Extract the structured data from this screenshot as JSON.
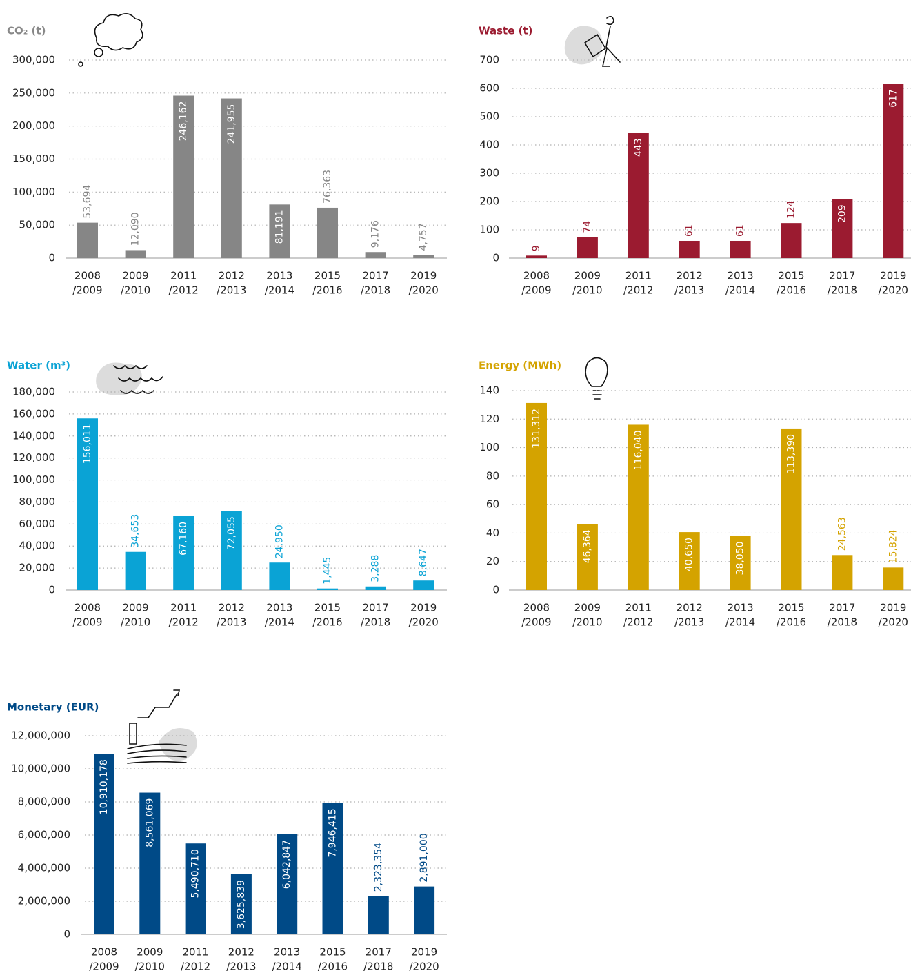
{
  "chart_data": [
    {
      "type": "bar",
      "title": "CO₂ (t)",
      "color": "#868686",
      "grid": true,
      "categories": [
        [
          "2008",
          "/2009"
        ],
        [
          "2009",
          "/2010"
        ],
        [
          "2011",
          "/2012"
        ],
        [
          "2012",
          "/2013"
        ],
        [
          "2013",
          "/2014"
        ],
        [
          "2015",
          "/2016"
        ],
        [
          "2017",
          "/2018"
        ],
        [
          "2019",
          "/2020"
        ]
      ],
      "values": [
        53694,
        12090,
        246162,
        241955,
        81191,
        76363,
        9176,
        4757
      ],
      "value_labels": [
        "53,694",
        "12,090",
        "246,162",
        "241,955",
        "81,191",
        "76,363",
        "9,176",
        "4,757"
      ],
      "ylim": [
        0,
        300000
      ],
      "yticks": [
        0,
        {
          "value": 50000,
          "label": "50,000"
        },
        {
          "value": 100000,
          "label": "100,000"
        },
        {
          "value": 150000,
          "label": "150,000"
        },
        {
          "value": 200000,
          "label": "200,000"
        },
        {
          "value": 250000,
          "label": "250,000"
        },
        {
          "value": 300000,
          "label": "300,000"
        }
      ]
    },
    {
      "type": "bar",
      "title": "Waste (t)",
      "color": "#9b1b30",
      "grid": true,
      "categories": [
        [
          "2008",
          "/2009"
        ],
        [
          "2009",
          "/2010"
        ],
        [
          "2011",
          "/2012"
        ],
        [
          "2012",
          "/2013"
        ],
        [
          "2013",
          "/2014"
        ],
        [
          "2015",
          "/2016"
        ],
        [
          "2017",
          "/2018"
        ],
        [
          "2019",
          "/2020"
        ]
      ],
      "values": [
        9,
        74,
        443,
        61,
        61,
        124,
        209,
        617
      ],
      "ylim": [
        0,
        700
      ],
      "yticks": [
        0,
        100,
        200,
        300,
        400,
        500,
        600,
        700
      ]
    },
    {
      "type": "bar",
      "title": "Water (m³)",
      "color": "#0aa3d5",
      "grid": true,
      "categories": [
        [
          "2008",
          "/2009"
        ],
        [
          "2009",
          "/2010"
        ],
        [
          "2011",
          "/2012"
        ],
        [
          "2012",
          "/2013"
        ],
        [
          "2013",
          "/2014"
        ],
        [
          "2015",
          "/2016"
        ],
        [
          "2017",
          "/2018"
        ],
        [
          "2019",
          "/2020"
        ]
      ],
      "values": [
        156011,
        34653,
        67160,
        72055,
        24950,
        1445,
        3288,
        8647
      ],
      "value_labels": [
        "156,011",
        "34,653",
        "67,160",
        "72,055",
        "24,950",
        "1,445",
        "3,288",
        "8,647"
      ],
      "ylim": [
        0,
        180000
      ],
      "yticks": [
        0,
        {
          "value": 20000,
          "label": "20,000"
        },
        {
          "value": 40000,
          "label": "40,000"
        },
        {
          "value": 60000,
          "label": "60,000"
        },
        {
          "value": 80000,
          "label": "80,000"
        },
        {
          "value": 100000,
          "label": "100,000"
        },
        {
          "value": 120000,
          "label": "120,000"
        },
        {
          "value": 140000,
          "label": "140,000"
        },
        {
          "value": 160000,
          "label": "160,000"
        },
        {
          "value": 180000,
          "label": "180,000"
        }
      ]
    },
    {
      "type": "bar",
      "title": "Energy (MWh)",
      "color": "#d4a300",
      "grid": true,
      "categories": [
        [
          "2008",
          "/2009"
        ],
        [
          "2009",
          "/2010"
        ],
        [
          "2011",
          "/2012"
        ],
        [
          "2012",
          "/2013"
        ],
        [
          "2013",
          "/2014"
        ],
        [
          "2015",
          "/2016"
        ],
        [
          "2017",
          "/2018"
        ],
        [
          "2019",
          "/2020"
        ]
      ],
      "values": [
        131.312,
        46.364,
        116.04,
        40.65,
        38.05,
        113.39,
        24.563,
        15.824
      ],
      "value_labels": [
        "131,312",
        "46,364",
        "116,040",
        "40,650",
        "38,050",
        "113,390",
        "24,563",
        "15,824"
      ],
      "ylim": [
        0,
        140
      ],
      "yticks": [
        0,
        20,
        40,
        60,
        80,
        100,
        120,
        140
      ]
    },
    {
      "type": "bar",
      "title": "Monetary (EUR)",
      "color": "#004a87",
      "grid": true,
      "categories": [
        [
          "2008",
          "/2009"
        ],
        [
          "2009",
          "/2010"
        ],
        [
          "2011",
          "/2012"
        ],
        [
          "2012",
          "/2013"
        ],
        [
          "2013",
          "/2014"
        ],
        [
          "2015",
          "/2016"
        ],
        [
          "2017",
          "/2018"
        ],
        [
          "2019",
          "/2020"
        ]
      ],
      "values": [
        10910178,
        8561069,
        5490710,
        3625839,
        6042847,
        7946415,
        2323354,
        2891000
      ],
      "value_labels": [
        "10,910,178",
        "8,561,069",
        "5,490,710",
        "3,625,839",
        "6,042,847",
        "7,946,415",
        "2,323,354",
        "2,891,000"
      ],
      "ylim": [
        0,
        12000000
      ],
      "yticks": [
        0,
        {
          "value": 2000000,
          "label": "2,000,000"
        },
        {
          "value": 4000000,
          "label": "4,000,000"
        },
        {
          "value": 6000000,
          "label": "6,000,000"
        },
        {
          "value": 8000000,
          "label": "8,000,000"
        },
        {
          "value": 10000000,
          "label": "10,000,000"
        },
        {
          "value": 12000000,
          "label": "12,000,000"
        }
      ]
    }
  ]
}
